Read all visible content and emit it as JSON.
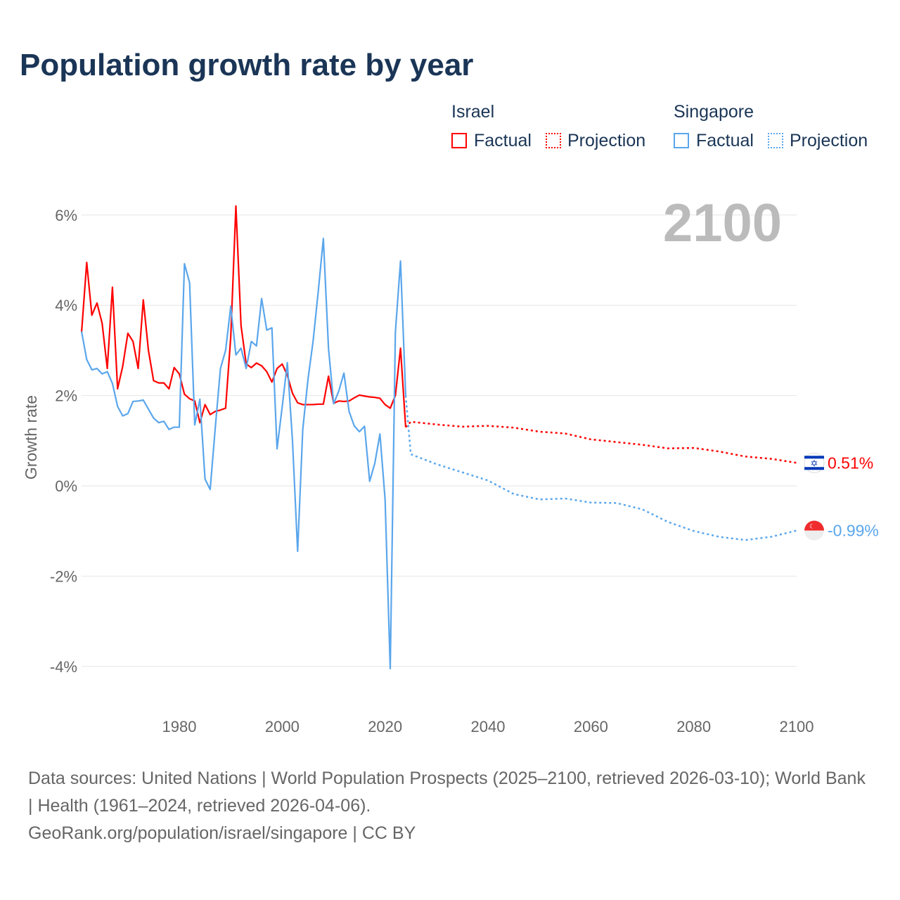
{
  "chart_data": {
    "type": "line",
    "title": "Population growth rate by year",
    "ylabel": "Growth rate",
    "xlabel": "",
    "xlim": [
      1961,
      2100
    ],
    "ylim": [
      -4,
      6
    ],
    "x_ticks": [
      "1980",
      "2000",
      "2020",
      "2040",
      "2060",
      "2080",
      "2100"
    ],
    "y_ticks": [
      "6%",
      "4%",
      "2%",
      "0%",
      "-2%",
      "-4%"
    ],
    "year_label": "2100",
    "legend": {
      "groups": [
        "Israel",
        "Singapore"
      ],
      "factual": "Factual",
      "projection": "Projection"
    },
    "series": [
      {
        "name": "Israel",
        "color": "#ff0000",
        "end_label": "0.51%",
        "factual": {
          "start": 1961,
          "values": [
            3.4,
            4.95,
            3.78,
            4.05,
            3.6,
            2.6,
            4.4,
            2.15,
            2.65,
            3.38,
            3.2,
            2.6,
            4.12,
            3.0,
            2.33,
            2.28,
            2.28,
            2.15,
            2.62,
            2.48,
            2.03,
            1.93,
            1.88,
            1.4,
            1.8,
            1.58,
            1.65,
            1.68,
            1.72,
            3.3,
            6.2,
            3.55,
            2.7,
            2.62,
            2.72,
            2.66,
            2.53,
            2.3,
            2.6,
            2.7,
            2.45,
            2.05,
            1.84,
            1.8,
            1.8,
            1.8,
            1.81,
            1.81,
            2.43,
            1.83,
            1.88,
            1.87,
            1.88,
            1.95,
            2.01,
            1.99,
            1.97,
            1.96,
            1.94,
            1.8,
            1.72,
            2.0,
            3.05,
            1.3
          ]
        },
        "projection": {
          "x": [
            2024,
            2025,
            2030,
            2035,
            2040,
            2045,
            2050,
            2055,
            2060,
            2065,
            2070,
            2075,
            2080,
            2085,
            2090,
            2095,
            2100
          ],
          "values": [
            1.3,
            1.42,
            1.36,
            1.31,
            1.33,
            1.29,
            1.2,
            1.16,
            1.03,
            0.97,
            0.91,
            0.83,
            0.84,
            0.76,
            0.65,
            0.6,
            0.51
          ]
        }
      },
      {
        "name": "Singapore",
        "color": "#5aa6ec",
        "end_label": "-0.99%",
        "factual": {
          "start": 1961,
          "values": [
            3.42,
            2.8,
            2.57,
            2.6,
            2.48,
            2.53,
            2.27,
            1.76,
            1.55,
            1.6,
            1.87,
            1.88,
            1.9,
            1.7,
            1.5,
            1.4,
            1.43,
            1.25,
            1.3,
            1.3,
            4.92,
            4.5,
            1.35,
            1.92,
            0.15,
            -0.08,
            1.3,
            2.6,
            3.0,
            3.98,
            2.9,
            3.05,
            2.6,
            3.2,
            3.1,
            4.15,
            3.45,
            3.5,
            0.82,
            1.75,
            2.73,
            1.0,
            -1.45,
            1.25,
            2.35,
            3.2,
            4.3,
            5.48,
            3.05,
            1.82,
            2.1,
            2.5,
            1.65,
            1.33,
            1.2,
            1.32,
            0.1,
            0.5,
            1.15,
            -0.3,
            -4.05,
            3.4,
            4.98,
            2.0
          ]
        },
        "projection": {
          "x": [
            2024,
            2025,
            2030,
            2035,
            2040,
            2045,
            2050,
            2055,
            2060,
            2065,
            2070,
            2075,
            2080,
            2085,
            2090,
            2095,
            2100
          ],
          "values": [
            2.0,
            0.7,
            0.48,
            0.3,
            0.12,
            -0.18,
            -0.3,
            -0.28,
            -0.37,
            -0.38,
            -0.52,
            -0.8,
            -1.0,
            -1.13,
            -1.2,
            -1.13,
            -0.99
          ]
        }
      }
    ]
  },
  "footer": {
    "line1": "Data sources: United Nations | World Population Prospects (2025–2100, retrieved 2026-03-10); World Bank | Health (1961–2024, retrieved 2026-04-06).",
    "line2": "GeoRank.org/population/israel/singapore | CC BY"
  }
}
